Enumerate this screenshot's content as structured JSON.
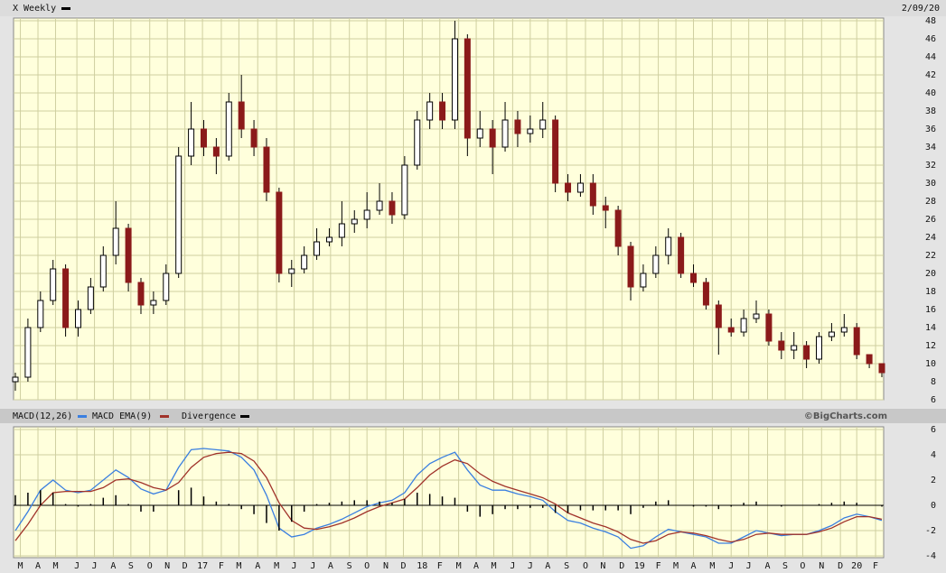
{
  "header": {
    "symbol": "X Weekly",
    "date": "2/09/20"
  },
  "chart_data": [
    {
      "type": "candlestick",
      "open": [
        8,
        8.5,
        14,
        17,
        20.5,
        14,
        16,
        18.5,
        22,
        25,
        19,
        16.5,
        17,
        20,
        33,
        36,
        34,
        33,
        39,
        36,
        34,
        29,
        20,
        20.5,
        22,
        23.5,
        24,
        25.5,
        26,
        27,
        28,
        26.5,
        32,
        37,
        39,
        37,
        46,
        35,
        36,
        34,
        37,
        35.5,
        36,
        37,
        30,
        29,
        30,
        27.5,
        27,
        23,
        18.5,
        20,
        22,
        24,
        20,
        19,
        16.5,
        14,
        13.5,
        15,
        15.5,
        12.5,
        11.5,
        12,
        10.5,
        13,
        13.5,
        14,
        11,
        10
      ],
      "high": [
        9,
        15,
        18,
        21.5,
        21,
        17,
        19.5,
        23,
        28,
        25.5,
        19.5,
        18,
        21,
        34,
        39,
        37,
        35,
        40,
        42,
        37,
        35,
        29.5,
        21.5,
        23,
        25,
        25,
        28,
        27,
        29,
        30,
        29,
        33,
        38,
        40,
        40,
        48,
        46.5,
        38,
        37,
        39,
        38,
        37.5,
        39,
        37.5,
        31,
        31,
        31,
        28.5,
        27.5,
        23.5,
        21,
        23,
        25,
        24.5,
        21,
        19.5,
        17,
        15,
        16,
        17,
        16,
        13.5,
        13.5,
        12.5,
        13.5,
        14.5,
        15.5,
        14.5,
        11,
        10
      ],
      "low": [
        7,
        8,
        13.5,
        16.5,
        13,
        13,
        15.5,
        18,
        21,
        18,
        15.5,
        15.5,
        16.5,
        19.5,
        32,
        33,
        31,
        32.5,
        35,
        33,
        28,
        19,
        18.5,
        20,
        21.5,
        23,
        23,
        24.5,
        25,
        26.5,
        25.5,
        26,
        31.5,
        36,
        36,
        36,
        33,
        34,
        31,
        33.5,
        34,
        34.5,
        35,
        29,
        28,
        28.5,
        26.5,
        25,
        22,
        17,
        18,
        19.5,
        21,
        19.5,
        18.5,
        16,
        11,
        13,
        13,
        14.5,
        12,
        10.5,
        10.5,
        9.5,
        10,
        12.5,
        13,
        10.5,
        9.5,
        8.5
      ],
      "close": [
        8.5,
        14,
        17,
        20.5,
        14,
        16,
        18.5,
        22,
        25,
        19,
        16.5,
        17,
        20,
        33,
        36,
        34,
        33,
        39,
        36,
        34,
        29,
        20,
        20.5,
        22,
        23.5,
        24,
        25.5,
        26,
        27,
        28,
        26.5,
        32,
        37,
        39,
        37,
        46,
        35,
        36,
        34,
        37,
        35.5,
        36,
        37,
        30,
        29,
        30,
        27.5,
        27,
        23,
        18.5,
        20,
        22,
        24,
        20,
        19,
        16.5,
        14,
        13.5,
        15,
        15.5,
        12.5,
        11.5,
        12,
        10.5,
        13,
        13.5,
        14,
        11,
        10,
        9
      ],
      "up_color": "#ffffff",
      "down_color": "#8b1a1a",
      "xlim": [
        0,
        69
      ],
      "ylim": [
        6,
        48
      ],
      "yticks": [
        6,
        8,
        10,
        12,
        14,
        16,
        18,
        20,
        22,
        24,
        26,
        28,
        30,
        32,
        34,
        36,
        38,
        40,
        42,
        44,
        46,
        48
      ],
      "grid": true
    },
    {
      "type": "macd",
      "series": [
        {
          "name": "MACD(12,26)",
          "color": "#3a7fe0",
          "values": [
            -2,
            -0.5,
            1.2,
            2,
            1.2,
            1,
            1.2,
            2,
            2.8,
            2.2,
            1.3,
            0.9,
            1.2,
            3,
            4.4,
            4.5,
            4.4,
            4.3,
            3.8,
            2.8,
            0.8,
            -1.8,
            -2.5,
            -2.3,
            -1.8,
            -1.5,
            -1.1,
            -0.6,
            -0.1,
            0.2,
            0.4,
            1,
            2.4,
            3.3,
            3.8,
            4.2,
            2.8,
            1.6,
            1.2,
            1.2,
            0.9,
            0.7,
            0.4,
            -0.5,
            -1.2,
            -1.4,
            -1.8,
            -2.1,
            -2.5,
            -3.4,
            -3.2,
            -2.5,
            -1.9,
            -2.1,
            -2.3,
            -2.5,
            -3,
            -3,
            -2.5,
            -2,
            -2.2,
            -2.4,
            -2.3,
            -2.3,
            -2,
            -1.6,
            -1,
            -0.7,
            -0.9,
            -1.2
          ]
        },
        {
          "name": "MACD EMA(9)",
          "color": "#a0322a",
          "values": [
            -2.8,
            -1.5,
            0,
            1,
            1.1,
            1.1,
            1.1,
            1.4,
            2,
            2.1,
            1.8,
            1.4,
            1.2,
            1.8,
            3,
            3.8,
            4.1,
            4.2,
            4.1,
            3.5,
            2.2,
            0.2,
            -1.2,
            -1.8,
            -1.9,
            -1.7,
            -1.4,
            -1,
            -0.5,
            -0.1,
            0.2,
            0.5,
            1.4,
            2.4,
            3.1,
            3.6,
            3.3,
            2.5,
            1.9,
            1.5,
            1.2,
            0.9,
            0.6,
            0.1,
            -0.6,
            -1,
            -1.4,
            -1.7,
            -2.1,
            -2.7,
            -3,
            -2.8,
            -2.3,
            -2.1,
            -2.2,
            -2.4,
            -2.7,
            -2.9,
            -2.7,
            -2.3,
            -2.2,
            -2.3,
            -2.3,
            -2.3,
            -2.1,
            -1.8,
            -1.3,
            -0.9,
            -0.9,
            -1.1
          ]
        },
        {
          "name": "Divergence",
          "color": "#000000",
          "style": "histogram",
          "values": [
            0.8,
            1,
            1.2,
            1,
            0.1,
            -0.1,
            0.1,
            0.6,
            0.8,
            0.1,
            -0.5,
            -0.5,
            0,
            1.2,
            1.4,
            0.7,
            0.3,
            0.1,
            -0.3,
            -0.7,
            -1.4,
            -2,
            -1.3,
            -0.5,
            0.1,
            0.2,
            0.3,
            0.4,
            0.4,
            0.3,
            0.2,
            0.5,
            1,
            0.9,
            0.7,
            0.6,
            -0.5,
            -0.9,
            -0.7,
            -0.3,
            -0.3,
            -0.2,
            -0.2,
            -0.6,
            -0.6,
            -0.4,
            -0.4,
            -0.4,
            -0.4,
            -0.7,
            -0.2,
            0.3,
            0.4,
            0,
            -0.1,
            -0.1,
            -0.3,
            -0.1,
            0.2,
            0.3,
            0,
            -0.1,
            0,
            0,
            0.1,
            0.2,
            0.3,
            0.2,
            0,
            -0.1
          ]
        }
      ],
      "credit": "©BigCharts.com",
      "xlim": [
        0,
        69
      ],
      "ylim": [
        -4,
        6
      ],
      "yticks": [
        -4,
        -2,
        0,
        2,
        4,
        6
      ],
      "xticks": [
        {
          "value": 0.4,
          "label": "M"
        },
        {
          "value": 1.8,
          "label": "A"
        },
        {
          "value": 3.2,
          "label": "M"
        },
        {
          "value": 4.9,
          "label": "J"
        },
        {
          "value": 6.3,
          "label": "J"
        },
        {
          "value": 7.8,
          "label": "A"
        },
        {
          "value": 9.2,
          "label": "S"
        },
        {
          "value": 10.7,
          "label": "O"
        },
        {
          "value": 12.1,
          "label": "N"
        },
        {
          "value": 13.5,
          "label": "D"
        },
        {
          "value": 14.9,
          "label": "17"
        },
        {
          "value": 16.4,
          "label": "F"
        },
        {
          "value": 17.8,
          "label": "M"
        },
        {
          "value": 19.3,
          "label": "A"
        },
        {
          "value": 20.8,
          "label": "M"
        },
        {
          "value": 22.2,
          "label": "J"
        },
        {
          "value": 23.7,
          "label": "J"
        },
        {
          "value": 25.1,
          "label": "A"
        },
        {
          "value": 26.6,
          "label": "S"
        },
        {
          "value": 28,
          "label": "O"
        },
        {
          "value": 29.5,
          "label": "N"
        },
        {
          "value": 30.9,
          "label": "D"
        },
        {
          "value": 32.4,
          "label": "18"
        },
        {
          "value": 33.8,
          "label": "F"
        },
        {
          "value": 35.3,
          "label": "M"
        },
        {
          "value": 36.7,
          "label": "A"
        },
        {
          "value": 38.1,
          "label": "M"
        },
        {
          "value": 39.6,
          "label": "J"
        },
        {
          "value": 41,
          "label": "J"
        },
        {
          "value": 42.4,
          "label": "A"
        },
        {
          "value": 43.9,
          "label": "S"
        },
        {
          "value": 45.4,
          "label": "O"
        },
        {
          "value": 46.8,
          "label": "N"
        },
        {
          "value": 48.3,
          "label": "D"
        },
        {
          "value": 49.7,
          "label": "19"
        },
        {
          "value": 51.2,
          "label": "F"
        },
        {
          "value": 52.6,
          "label": "M"
        },
        {
          "value": 54,
          "label": "A"
        },
        {
          "value": 55.5,
          "label": "M"
        },
        {
          "value": 57,
          "label": "J"
        },
        {
          "value": 58.4,
          "label": "J"
        },
        {
          "value": 59.9,
          "label": "A"
        },
        {
          "value": 61.3,
          "label": "S"
        },
        {
          "value": 62.7,
          "label": "O"
        },
        {
          "value": 64.2,
          "label": "N"
        },
        {
          "value": 65.7,
          "label": "D"
        },
        {
          "value": 67,
          "label": "20"
        },
        {
          "value": 68.5,
          "label": "F"
        }
      ],
      "grid": true
    }
  ]
}
